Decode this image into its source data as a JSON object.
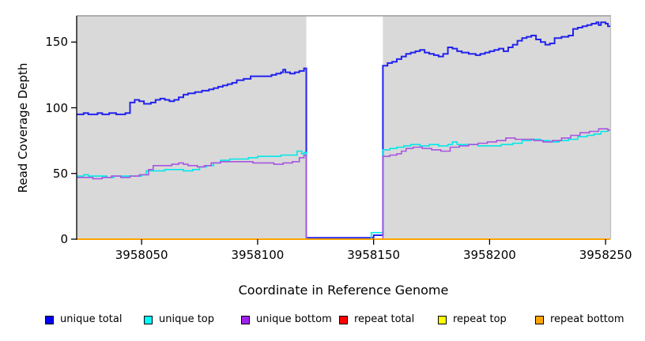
{
  "chart_data": {
    "type": "line",
    "subtype": "step",
    "title": "",
    "xlabel": "Coordinate in Reference Genome",
    "ylabel": "Read Coverage Depth",
    "xlim": [
      3958022,
      3958252
    ],
    "ylim": [
      0,
      170
    ],
    "xticks": [
      3958050,
      3958100,
      3958150,
      3958200,
      3958250
    ],
    "yticks": [
      0,
      50,
      100,
      150
    ],
    "grid": false,
    "panel_bg": "#d9d9d9",
    "panel_border_color": "#9a9a9a",
    "axis_color": "#000000",
    "masked_region": {
      "start": 3958121,
      "end": 3958154,
      "color": "#ffffff"
    },
    "legend_position": "bottom",
    "legend": [
      {
        "label": "unique total",
        "color": "#0000ff"
      },
      {
        "label": "unique top",
        "color": "#00ffff"
      },
      {
        "label": "unique bottom",
        "color": "#a020f0"
      },
      {
        "label": "repeat total",
        "color": "#ff0000"
      },
      {
        "label": "repeat top",
        "color": "#ffff00"
      },
      {
        "label": "repeat bottom",
        "color": "#ffa500"
      }
    ],
    "series": [
      {
        "name": "unique total",
        "color": "#2222ee",
        "width": 2,
        "points": [
          [
            3958022,
            95
          ],
          [
            3958025,
            96
          ],
          [
            3958027,
            95
          ],
          [
            3958031,
            96
          ],
          [
            3958033,
            95
          ],
          [
            3958036,
            96
          ],
          [
            3958039,
            95
          ],
          [
            3958043,
            96
          ],
          [
            3958045,
            104
          ],
          [
            3958047,
            106
          ],
          [
            3958049,
            105
          ],
          [
            3958051,
            103
          ],
          [
            3958054,
            104
          ],
          [
            3958056,
            106
          ],
          [
            3958058,
            107
          ],
          [
            3958060,
            106
          ],
          [
            3958062,
            105
          ],
          [
            3958064,
            106
          ],
          [
            3958066,
            108
          ],
          [
            3958068,
            110
          ],
          [
            3958070,
            111
          ],
          [
            3958073,
            112
          ],
          [
            3958076,
            113
          ],
          [
            3958079,
            114
          ],
          [
            3958081,
            115
          ],
          [
            3958083,
            116
          ],
          [
            3958085,
            117
          ],
          [
            3958087,
            118
          ],
          [
            3958089,
            119
          ],
          [
            3958091,
            121
          ],
          [
            3958094,
            122
          ],
          [
            3958097,
            124
          ],
          [
            3958103,
            124
          ],
          [
            3958106,
            125
          ],
          [
            3958108,
            126
          ],
          [
            3958110,
            127
          ],
          [
            3958111,
            129
          ],
          [
            3958112,
            127
          ],
          [
            3958114,
            126
          ],
          [
            3958116,
            127
          ],
          [
            3958118,
            128
          ],
          [
            3958120,
            130
          ],
          [
            3958121,
            1
          ],
          [
            3958150,
            3
          ],
          [
            3958154,
            132
          ],
          [
            3958156,
            134
          ],
          [
            3958158,
            135
          ],
          [
            3958160,
            137
          ],
          [
            3958162,
            139
          ],
          [
            3958164,
            141
          ],
          [
            3958166,
            142
          ],
          [
            3958168,
            143
          ],
          [
            3958170,
            144
          ],
          [
            3958172,
            142
          ],
          [
            3958174,
            141
          ],
          [
            3958176,
            140
          ],
          [
            3958178,
            139
          ],
          [
            3958180,
            141
          ],
          [
            3958182,
            146
          ],
          [
            3958184,
            145
          ],
          [
            3958186,
            143
          ],
          [
            3958188,
            142
          ],
          [
            3958191,
            141
          ],
          [
            3958194,
            140
          ],
          [
            3958196,
            141
          ],
          [
            3958198,
            142
          ],
          [
            3958200,
            143
          ],
          [
            3958202,
            144
          ],
          [
            3958204,
            145
          ],
          [
            3958206,
            143
          ],
          [
            3958208,
            146
          ],
          [
            3958210,
            148
          ],
          [
            3958212,
            151
          ],
          [
            3958214,
            153
          ],
          [
            3958216,
            154
          ],
          [
            3958218,
            155
          ],
          [
            3958220,
            152
          ],
          [
            3958222,
            150
          ],
          [
            3958224,
            148
          ],
          [
            3958226,
            149
          ],
          [
            3958228,
            153
          ],
          [
            3958231,
            154
          ],
          [
            3958234,
            155
          ],
          [
            3958236,
            160
          ],
          [
            3958238,
            161
          ],
          [
            3958240,
            162
          ],
          [
            3958242,
            163
          ],
          [
            3958244,
            164
          ],
          [
            3958246,
            165
          ],
          [
            3958247,
            163
          ],
          [
            3958248,
            165
          ],
          [
            3958250,
            164
          ],
          [
            3958251,
            162
          ]
        ]
      },
      {
        "name": "unique top",
        "color": "#00e8e8",
        "width": 1.6,
        "points": [
          [
            3958022,
            48
          ],
          [
            3958025,
            49
          ],
          [
            3958027,
            48
          ],
          [
            3958031,
            48
          ],
          [
            3958035,
            47
          ],
          [
            3958038,
            48
          ],
          [
            3958042,
            48
          ],
          [
            3958046,
            48
          ],
          [
            3958050,
            49
          ],
          [
            3958052,
            52
          ],
          [
            3958056,
            52
          ],
          [
            3958060,
            53
          ],
          [
            3958064,
            53
          ],
          [
            3958068,
            52
          ],
          [
            3958072,
            53
          ],
          [
            3958075,
            55
          ],
          [
            3958078,
            56
          ],
          [
            3958081,
            58
          ],
          [
            3958084,
            60
          ],
          [
            3958088,
            61
          ],
          [
            3958092,
            61
          ],
          [
            3958096,
            62
          ],
          [
            3958100,
            63
          ],
          [
            3958105,
            63
          ],
          [
            3958110,
            64
          ],
          [
            3958114,
            64
          ],
          [
            3958117,
            67
          ],
          [
            3958119,
            65
          ],
          [
            3958120,
            66
          ],
          [
            3958121,
            0
          ],
          [
            3958149,
            5
          ],
          [
            3958154,
            68
          ],
          [
            3958157,
            69
          ],
          [
            3958160,
            70
          ],
          [
            3958163,
            71
          ],
          [
            3958166,
            72
          ],
          [
            3958170,
            71
          ],
          [
            3958174,
            72
          ],
          [
            3958178,
            71
          ],
          [
            3958182,
            72
          ],
          [
            3958184,
            74
          ],
          [
            3958186,
            72
          ],
          [
            3958190,
            72
          ],
          [
            3958195,
            71
          ],
          [
            3958200,
            71
          ],
          [
            3958205,
            72
          ],
          [
            3958210,
            73
          ],
          [
            3958214,
            75
          ],
          [
            3958218,
            76
          ],
          [
            3958222,
            75
          ],
          [
            3958226,
            74
          ],
          [
            3958230,
            75
          ],
          [
            3958234,
            76
          ],
          [
            3958238,
            78
          ],
          [
            3958242,
            79
          ],
          [
            3958245,
            80
          ],
          [
            3958248,
            82
          ],
          [
            3958251,
            83
          ]
        ]
      },
      {
        "name": "unique bottom",
        "color": "#a855e0",
        "width": 1.6,
        "points": [
          [
            3958022,
            47
          ],
          [
            3958026,
            47
          ],
          [
            3958029,
            46
          ],
          [
            3958033,
            47
          ],
          [
            3958037,
            48
          ],
          [
            3958041,
            47
          ],
          [
            3958045,
            48
          ],
          [
            3958049,
            49
          ],
          [
            3958053,
            53
          ],
          [
            3958055,
            56
          ],
          [
            3958059,
            56
          ],
          [
            3958063,
            57
          ],
          [
            3958066,
            58
          ],
          [
            3958068,
            57
          ],
          [
            3958070,
            56
          ],
          [
            3958074,
            55
          ],
          [
            3958077,
            56
          ],
          [
            3958080,
            58
          ],
          [
            3958084,
            59
          ],
          [
            3958089,
            59
          ],
          [
            3958094,
            59
          ],
          [
            3958098,
            58
          ],
          [
            3958103,
            58
          ],
          [
            3958107,
            57
          ],
          [
            3958111,
            58
          ],
          [
            3958115,
            59
          ],
          [
            3958118,
            62
          ],
          [
            3958120,
            64
          ],
          [
            3958121,
            0
          ],
          [
            3958154,
            63
          ],
          [
            3958157,
            64
          ],
          [
            3958160,
            65
          ],
          [
            3958162,
            67
          ],
          [
            3958164,
            69
          ],
          [
            3958167,
            70
          ],
          [
            3958171,
            69
          ],
          [
            3958175,
            68
          ],
          [
            3958179,
            67
          ],
          [
            3958183,
            70
          ],
          [
            3958187,
            71
          ],
          [
            3958191,
            72
          ],
          [
            3958195,
            73
          ],
          [
            3958199,
            74
          ],
          [
            3958203,
            75
          ],
          [
            3958207,
            77
          ],
          [
            3958211,
            76
          ],
          [
            3958215,
            76
          ],
          [
            3958219,
            75
          ],
          [
            3958223,
            74
          ],
          [
            3958227,
            75
          ],
          [
            3958231,
            77
          ],
          [
            3958235,
            79
          ],
          [
            3958239,
            81
          ],
          [
            3958243,
            82
          ],
          [
            3958247,
            84
          ],
          [
            3958251,
            83
          ]
        ]
      },
      {
        "name": "repeat total",
        "color": "#ff0000",
        "width": 1.5,
        "points": [
          [
            3958022,
            0
          ],
          [
            3958251,
            0
          ]
        ]
      },
      {
        "name": "repeat top",
        "color": "#ffff00",
        "width": 1.5,
        "points": [
          [
            3958022,
            0
          ],
          [
            3958251,
            0
          ]
        ]
      },
      {
        "name": "repeat bottom",
        "color": "#ffa500",
        "width": 2,
        "points": [
          [
            3958022,
            0
          ],
          [
            3958251,
            0
          ]
        ]
      }
    ]
  },
  "legend_items": {
    "lefts": [
      57,
      182,
      305,
      429,
      554,
      677
    ]
  }
}
